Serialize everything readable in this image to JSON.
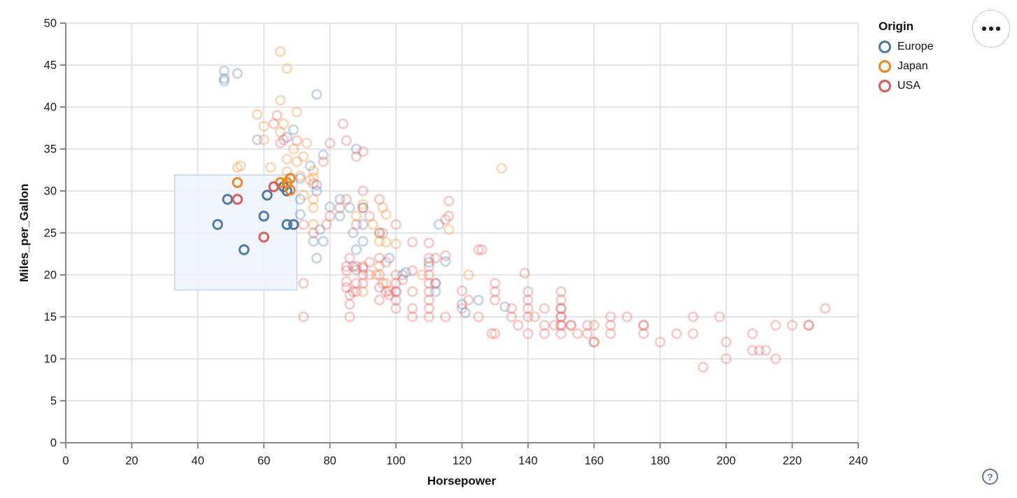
{
  "page": {
    "background": "#ffffff"
  },
  "toolbar": {
    "menu_button": {
      "icon": "ellipsis",
      "tooltip": ""
    },
    "help_button": {
      "label": "?"
    }
  },
  "legend": {
    "title": "Origin",
    "entries": [
      {
        "label": "Europe",
        "color": "#4c78a8"
      },
      {
        "label": "Japan",
        "color": "#f58518"
      },
      {
        "label": "USA",
        "color": "#e45756"
      }
    ]
  },
  "chart_data": {
    "type": "scatter",
    "title": "",
    "xlabel": "Horsepower",
    "ylabel": "Miles_per_Gallon",
    "xlim": [
      0,
      240
    ],
    "ylim": [
      0,
      50
    ],
    "x_ticks": [
      0,
      20,
      40,
      60,
      80,
      100,
      120,
      140,
      160,
      180,
      200,
      220,
      240
    ],
    "y_ticks": [
      0,
      5,
      10,
      15,
      20,
      25,
      30,
      35,
      40,
      45,
      50
    ],
    "grid": true,
    "legend_position": "top-right",
    "style": {
      "point_shape": "open-circle",
      "point_radius": 6.3,
      "point_stroke_width": 2.8,
      "faded_opacity": 0.3,
      "selected_opacity": 1.0,
      "grid_color": "#dddddd",
      "axis_color": "#888888",
      "label_color": "#1b1b1b"
    },
    "brush": {
      "x_range": [
        33,
        70
      ],
      "y_range": [
        18.2,
        31.9
      ],
      "fill": "#eff4fc",
      "fill_opacity": 0.85,
      "stroke": "#c3d3f0"
    },
    "series": [
      {
        "name": "Europe",
        "color": "#4c78a8",
        "selected_points": [
          [
            46,
            26
          ],
          [
            49,
            29
          ],
          [
            54,
            23
          ],
          [
            60,
            27
          ],
          [
            61,
            29.5
          ],
          [
            67,
            26
          ],
          [
            69,
            26
          ],
          [
            67,
            30
          ],
          [
            66,
            30.5
          ]
        ],
        "points": [
          [
            48,
            43.1
          ],
          [
            48,
            43.4
          ],
          [
            48,
            44.3
          ],
          [
            52,
            44
          ],
          [
            76,
            41.5
          ],
          [
            67,
            36.4
          ],
          [
            69,
            37.3
          ],
          [
            58,
            36.1
          ],
          [
            88,
            35
          ],
          [
            78,
            34.3
          ],
          [
            71,
            31.5
          ],
          [
            74,
            33
          ],
          [
            71,
            29
          ],
          [
            83,
            29
          ],
          [
            76,
            30
          ],
          [
            90,
            28
          ],
          [
            86,
            28
          ],
          [
            83,
            27
          ],
          [
            71,
            27.2
          ],
          [
            87,
            25
          ],
          [
            90,
            24
          ],
          [
            95,
            25
          ],
          [
            75,
            24
          ],
          [
            78,
            24
          ],
          [
            80,
            28.1
          ],
          [
            90,
            26
          ],
          [
            76,
            22
          ],
          [
            87,
            21
          ],
          [
            88,
            23
          ],
          [
            103,
            20.3
          ],
          [
            98,
            22
          ],
          [
            102,
            20
          ],
          [
            112,
            18
          ],
          [
            112,
            19
          ],
          [
            110,
            21.5
          ],
          [
            115,
            21.6
          ],
          [
            113,
            26
          ],
          [
            125,
            17
          ],
          [
            133,
            16.2
          ],
          [
            120,
            16.5
          ],
          [
            77,
            25.4
          ],
          [
            76,
            30.7
          ],
          [
            121,
            15.5
          ]
        ]
      },
      {
        "name": "Japan",
        "color": "#f58518",
        "selected_points": [
          [
            52,
            31
          ],
          [
            65,
            31
          ],
          [
            67,
            31
          ],
          [
            68,
            31.5
          ],
          [
            68,
            30.1
          ]
        ],
        "points": [
          [
            65,
            46.6
          ],
          [
            67,
            44.6
          ],
          [
            65,
            40.8
          ],
          [
            70,
            39.4
          ],
          [
            58,
            39.1
          ],
          [
            60,
            37.7
          ],
          [
            65,
            37
          ],
          [
            73,
            35.7
          ],
          [
            66,
            38
          ],
          [
            69,
            35
          ],
          [
            60,
            36.1
          ],
          [
            53,
            33
          ],
          [
            52,
            32.8
          ],
          [
            62,
            32.8
          ],
          [
            67,
            32.3
          ],
          [
            67,
            33.8
          ],
          [
            70,
            33.5
          ],
          [
            72,
            34.1
          ],
          [
            75,
            32.4
          ],
          [
            71,
            31.8
          ],
          [
            75,
            31.6
          ],
          [
            74,
            31.3
          ],
          [
            72,
            29.5
          ],
          [
            75,
            29
          ],
          [
            75,
            28
          ],
          [
            75,
            26
          ],
          [
            95,
            24
          ],
          [
            95,
            25
          ],
          [
            96,
            28
          ],
          [
            97,
            27.2
          ],
          [
            94,
            20
          ],
          [
            97,
            19
          ],
          [
            90,
            18
          ],
          [
            100,
            23.7
          ],
          [
            116,
            25.4
          ],
          [
            132,
            32.7
          ],
          [
            97,
            23.9
          ],
          [
            93,
            26
          ],
          [
            90,
            28.4
          ],
          [
            108,
            20
          ],
          [
            122,
            20
          ],
          [
            95,
            21.1
          ],
          [
            88,
            27
          ]
        ]
      },
      {
        "name": "USA",
        "color": "#e45756",
        "selected_points": [
          [
            52,
            29
          ],
          [
            60,
            24.5
          ],
          [
            63,
            30.5
          ]
        ],
        "points": [
          [
            64,
            39
          ],
          [
            63,
            38
          ],
          [
            66,
            36.1
          ],
          [
            65,
            35.7
          ],
          [
            70,
            36
          ],
          [
            80,
            35.7
          ],
          [
            84,
            38
          ],
          [
            85,
            36
          ],
          [
            88,
            34.1
          ],
          [
            90,
            34.7
          ],
          [
            78,
            33.5
          ],
          [
            90,
            28
          ],
          [
            83,
            28
          ],
          [
            79,
            26
          ],
          [
            75,
            25
          ],
          [
            72,
            26
          ],
          [
            80,
            27
          ],
          [
            85,
            29
          ],
          [
            88,
            26
          ],
          [
            92,
            27
          ],
          [
            96,
            25
          ],
          [
            75,
            30.9
          ],
          [
            90,
            30
          ],
          [
            95,
            29
          ],
          [
            100,
            26
          ],
          [
            95,
            22
          ],
          [
            97,
            18
          ],
          [
            85,
            21
          ],
          [
            90,
            21
          ],
          [
            100,
            19
          ],
          [
            105,
            16
          ],
          [
            100,
            17
          ],
          [
            88,
            19
          ],
          [
            100,
            18
          ],
          [
            100,
            18
          ],
          [
            105,
            15
          ],
          [
            110,
            18
          ],
          [
            95,
            20
          ],
          [
            88,
            18
          ],
          [
            110,
            19
          ],
          [
            90,
            20
          ],
          [
            92,
            20
          ],
          [
            112,
            19
          ],
          [
            105,
            18
          ],
          [
            85,
            20.5
          ],
          [
            88,
            20.6
          ],
          [
            90,
            20.8
          ],
          [
            85,
            19.2
          ],
          [
            85,
            18.5
          ],
          [
            88,
            21
          ],
          [
            95,
            18.5
          ],
          [
            96,
            19
          ],
          [
            98,
            18.1
          ],
          [
            100,
            20
          ],
          [
            105,
            20.5
          ],
          [
            86,
            22
          ],
          [
            72,
            19
          ],
          [
            90,
            19
          ],
          [
            87,
            18
          ],
          [
            92,
            21.5
          ],
          [
            97,
            21.5
          ],
          [
            110,
            21
          ],
          [
            110,
            22
          ],
          [
            110,
            23.8
          ],
          [
            115,
            22.3
          ],
          [
            112,
            22
          ],
          [
            110,
            20
          ],
          [
            102,
            19.4
          ],
          [
            98,
            17.6
          ],
          [
            95,
            17
          ],
          [
            105,
            23.9
          ],
          [
            120,
            18.1
          ],
          [
            115,
            26.6
          ],
          [
            116,
            28.8
          ],
          [
            116,
            27
          ],
          [
            126,
            23
          ],
          [
            125,
            23
          ],
          [
            72,
            15
          ],
          [
            86,
            17.6
          ],
          [
            86,
            16.5
          ],
          [
            86,
            15
          ],
          [
            100,
            16
          ],
          [
            110,
            16
          ],
          [
            110,
            17
          ],
          [
            110,
            15
          ],
          [
            130,
            18
          ],
          [
            165,
            15
          ],
          [
            150,
            18
          ],
          [
            150,
            16
          ],
          [
            140,
            17
          ],
          [
            198,
            15
          ],
          [
            220,
            14
          ],
          [
            215,
            14
          ],
          [
            225,
            14
          ],
          [
            190,
            15
          ],
          [
            170,
            15
          ],
          [
            160,
            14
          ],
          [
            150,
            15
          ],
          [
            225,
            14
          ],
          [
            215,
            10
          ],
          [
            200,
            10
          ],
          [
            210,
            11
          ],
          [
            193,
            9
          ],
          [
            165,
            14
          ],
          [
            175,
            14
          ],
          [
            153,
            14
          ],
          [
            150,
            14
          ],
          [
            180,
            12
          ],
          [
            208,
            13
          ],
          [
            155,
            13
          ],
          [
            160,
            12
          ],
          [
            190,
            13
          ],
          [
            150,
            15
          ],
          [
            130,
            13
          ],
          [
            140,
            13
          ],
          [
            150,
            14
          ],
          [
            165,
            13
          ],
          [
            175,
            14
          ],
          [
            153,
            14
          ],
          [
            150,
            17
          ],
          [
            208,
            11
          ],
          [
            175,
            13
          ],
          [
            160,
            12
          ],
          [
            185,
            13
          ],
          [
            150,
            13
          ],
          [
            158,
            13
          ],
          [
            145,
            13
          ],
          [
            137,
            14
          ],
          [
            158,
            14
          ],
          [
            145,
            14
          ],
          [
            150,
            16
          ],
          [
            140,
            16
          ],
          [
            230,
            16
          ],
          [
            145,
            16
          ],
          [
            140,
            15
          ],
          [
            148,
            14
          ],
          [
            142,
            15
          ],
          [
            129,
            13
          ],
          [
            135,
            15
          ],
          [
            130,
            19
          ],
          [
            120,
            16
          ],
          [
            115,
            15
          ],
          [
            125,
            15
          ],
          [
            122,
            17
          ],
          [
            130,
            17
          ],
          [
            135,
            16
          ],
          [
            139,
            20.2
          ],
          [
            140,
            18
          ],
          [
            200,
            12
          ],
          [
            212,
            11
          ]
        ]
      }
    ]
  }
}
